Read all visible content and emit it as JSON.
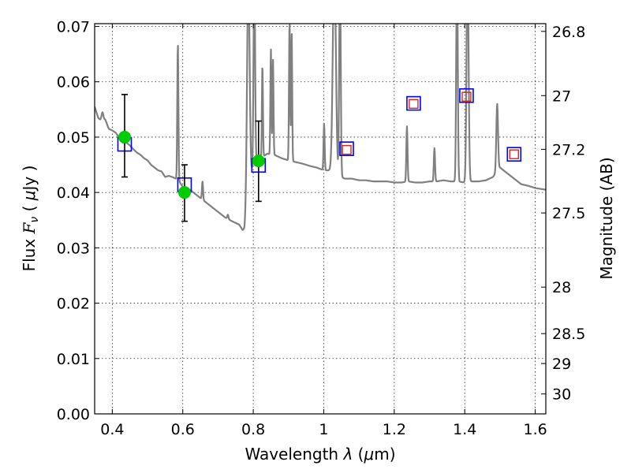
{
  "chart_data": {
    "type": "scatter",
    "xlabel_prefix": "Wavelength  ",
    "xlabel_sym": "λ",
    "xlabel_unit_open": " (",
    "xlabel_mu": "μ",
    "xlabel_unit_close": "m)",
    "ylabel_prefix": "Flux  ",
    "ylabel_sym": "F",
    "ylabel_sub": "ν",
    "ylabel_unit_open": "  ( ",
    "ylabel_mu": "μ",
    "ylabel_unit_close": "Jy )",
    "y2label": "Magnitude (AB)",
    "xlim": [
      0.35,
      1.63
    ],
    "ylim": [
      0.0,
      0.0705
    ],
    "grid": true,
    "x_ticks": [
      0.4,
      0.6,
      0.8,
      1.0,
      1.2,
      1.4,
      1.6
    ],
    "x_tick_labels": [
      "0.4",
      "0.6",
      "0.8",
      "1",
      "1.2",
      "1.4",
      "1.6"
    ],
    "y_ticks": [
      0.0,
      0.01,
      0.02,
      0.03,
      0.04,
      0.05,
      0.06,
      0.07
    ],
    "y_tick_labels": [
      "0.00",
      "0.01",
      "0.02",
      "0.03",
      "0.04",
      "0.05",
      "0.06",
      "0.07"
    ],
    "y2_ticks": [
      {
        "label": "26.8",
        "flux": 0.0691
      },
      {
        "label": "27",
        "flux": 0.0575
      },
      {
        "label": "27.2",
        "flux": 0.0478
      },
      {
        "label": "27.5",
        "flux": 0.0363
      },
      {
        "label": "28",
        "flux": 0.0229
      },
      {
        "label": "28.5",
        "flux": 0.0145
      },
      {
        "label": "29",
        "flux": 0.0091
      },
      {
        "label": "30",
        "flux": 0.0036
      }
    ],
    "series": [
      {
        "kind": "model-spectrum",
        "color": "#808080",
        "baseline": [
          [
            0.35,
            0.0555
          ],
          [
            0.36,
            0.0535
          ],
          [
            0.37,
            0.0528
          ],
          [
            0.38,
            0.0532
          ],
          [
            0.39,
            0.0515
          ],
          [
            0.4,
            0.0512
          ],
          [
            0.41,
            0.0508
          ],
          [
            0.42,
            0.0498
          ],
          [
            0.43,
            0.049
          ],
          [
            0.44,
            0.049
          ],
          [
            0.45,
            0.0485
          ],
          [
            0.46,
            0.0478
          ],
          [
            0.47,
            0.0472
          ],
          [
            0.48,
            0.0468
          ],
          [
            0.49,
            0.0462
          ],
          [
            0.5,
            0.0458
          ],
          [
            0.51,
            0.045
          ],
          [
            0.52,
            0.0445
          ],
          [
            0.53,
            0.044
          ],
          [
            0.54,
            0.0438
          ],
          [
            0.55,
            0.0428
          ],
          [
            0.56,
            0.043
          ],
          [
            0.57,
            0.0428
          ],
          [
            0.58,
            0.0425
          ],
          [
            0.59,
            0.042
          ],
          [
            0.6,
            0.041
          ],
          [
            0.62,
            0.0405
          ],
          [
            0.64,
            0.0395
          ],
          [
            0.66,
            0.0385
          ],
          [
            0.68,
            0.0375
          ],
          [
            0.7,
            0.0365
          ],
          [
            0.72,
            0.0355
          ],
          [
            0.74,
            0.0348
          ],
          [
            0.76,
            0.0342
          ],
          [
            0.77,
            0.0332
          ],
          [
            0.775,
            0.0335
          ],
          [
            0.785,
            0.04
          ],
          [
            0.8,
            0.045
          ],
          [
            0.82,
            0.0462
          ],
          [
            0.84,
            0.047
          ],
          [
            0.86,
            0.0468
          ],
          [
            0.88,
            0.0462
          ],
          [
            0.9,
            0.0458
          ],
          [
            0.92,
            0.0455
          ],
          [
            0.94,
            0.0452
          ],
          [
            0.96,
            0.0448
          ],
          [
            0.98,
            0.0445
          ],
          [
            1.0,
            0.044
          ],
          [
            1.02,
            0.044
          ],
          [
            1.04,
            0.043
          ],
          [
            1.06,
            0.0425
          ],
          [
            1.08,
            0.0425
          ],
          [
            1.1,
            0.0422
          ],
          [
            1.12,
            0.0422
          ],
          [
            1.14,
            0.042
          ],
          [
            1.16,
            0.042
          ],
          [
            1.18,
            0.042
          ],
          [
            1.2,
            0.0418
          ],
          [
            1.22,
            0.0418
          ],
          [
            1.24,
            0.042
          ],
          [
            1.26,
            0.0418
          ],
          [
            1.28,
            0.0418
          ],
          [
            1.3,
            0.042
          ],
          [
            1.32,
            0.042
          ],
          [
            1.34,
            0.0422
          ],
          [
            1.36,
            0.042
          ],
          [
            1.38,
            0.042
          ],
          [
            1.4,
            0.0418
          ],
          [
            1.42,
            0.042
          ],
          [
            1.44,
            0.042
          ],
          [
            1.46,
            0.0422
          ],
          [
            1.48,
            0.0428
          ],
          [
            1.5,
            0.0445
          ],
          [
            1.52,
            0.0435
          ],
          [
            1.54,
            0.0425
          ],
          [
            1.56,
            0.0415
          ],
          [
            1.58,
            0.0412
          ],
          [
            1.6,
            0.0408
          ],
          [
            1.63,
            0.0405
          ]
        ],
        "emission_lines": [
          [
            0.372,
            0.0545,
            0.0038
          ],
          [
            0.586,
            0.067,
            0.0022
          ],
          [
            0.656,
            0.042,
            0.0022
          ],
          [
            0.728,
            0.036,
            0.0024
          ],
          [
            0.786,
            0.0795,
            0.005
          ],
          [
            0.803,
            0.0815,
            0.003
          ],
          [
            0.826,
            0.0632,
            0.002
          ],
          [
            0.85,
            0.066,
            0.002
          ],
          [
            0.856,
            0.064,
            0.002
          ],
          [
            0.903,
            0.071,
            0.0022
          ],
          [
            0.909,
            0.069,
            0.002
          ],
          [
            1.001,
            0.0525,
            0.0022
          ],
          [
            1.03,
            0.082,
            0.006
          ],
          [
            1.046,
            0.08,
            0.003
          ],
          [
            1.236,
            0.052,
            0.0024
          ],
          [
            1.314,
            0.048,
            0.0024
          ],
          [
            1.378,
            0.082,
            0.003
          ],
          [
            1.408,
            0.082,
            0.004
          ],
          [
            1.492,
            0.056,
            0.0034
          ]
        ]
      },
      {
        "kind": "observed-photometry",
        "color": "#00cc00",
        "points": [
          {
            "x": 0.435,
            "y": 0.05,
            "err_low": 0.0072,
            "err_high": 0.0077
          },
          {
            "x": 0.605,
            "y": 0.04,
            "err_low": 0.0052,
            "err_high": 0.005
          },
          {
            "x": 0.815,
            "y": 0.0457,
            "err_low": 0.0073,
            "err_high": 0.0072
          }
        ]
      },
      {
        "kind": "model-photometry-large",
        "color": "#0000ff",
        "points": [
          {
            "x": 0.435,
            "y": 0.0487
          },
          {
            "x": 0.605,
            "y": 0.0414
          },
          {
            "x": 0.815,
            "y": 0.0449
          },
          {
            "x": 1.065,
            "y": 0.0479
          },
          {
            "x": 1.255,
            "y": 0.0561
          },
          {
            "x": 1.405,
            "y": 0.0575
          },
          {
            "x": 1.54,
            "y": 0.0469
          }
        ]
      },
      {
        "kind": "model-photometry-small",
        "color": "#dd2222",
        "points": [
          {
            "x": 1.065,
            "y": 0.0477
          },
          {
            "x": 1.255,
            "y": 0.056
          },
          {
            "x": 1.405,
            "y": 0.0573
          },
          {
            "x": 1.54,
            "y": 0.0469
          }
        ]
      }
    ]
  }
}
